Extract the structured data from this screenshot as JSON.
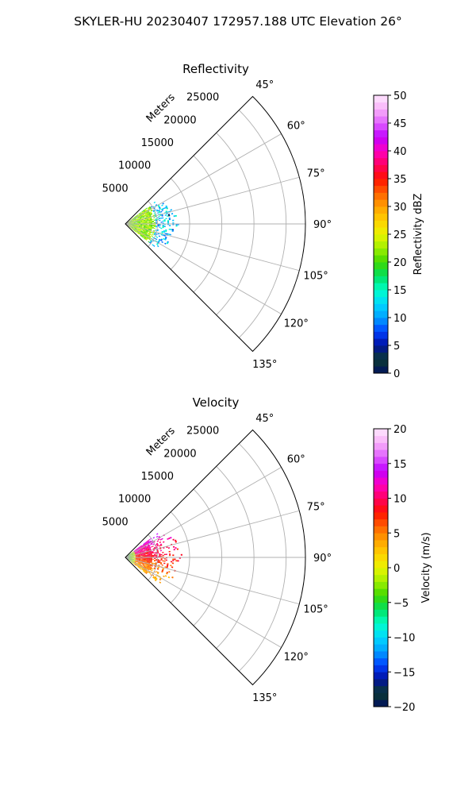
{
  "suptitle": "SKYLER-HU  20230407  172957.188 UTC Elevation 26°",
  "range_label": "Meters",
  "chart_data": [
    {
      "type": "polar-sector-heatmap",
      "title": "Reflectivity",
      "theta_range_deg": [
        45,
        135
      ],
      "theta_ticks": [
        {
          "value": 45,
          "label": "45°"
        },
        {
          "value": 60,
          "label": "60°"
        },
        {
          "value": 75,
          "label": "75°"
        },
        {
          "value": 90,
          "label": "90°"
        },
        {
          "value": 105,
          "label": "105°"
        },
        {
          "value": 120,
          "label": "120°"
        },
        {
          "value": 135,
          "label": "135°"
        }
      ],
      "r_range_m": [
        0,
        28000
      ],
      "r_ticks": [
        {
          "value": 5000,
          "label": "5000"
        },
        {
          "value": 10000,
          "label": "10000"
        },
        {
          "value": 15000,
          "label": "15000"
        },
        {
          "value": 20000,
          "label": "20000"
        },
        {
          "value": 25000,
          "label": "25000"
        }
      ],
      "grid": true,
      "colorbar": {
        "label": "Reflectivity dBZ",
        "range": [
          0,
          50
        ],
        "ticks": [
          {
            "value": 0,
            "label": "0"
          },
          {
            "value": 5,
            "label": "5"
          },
          {
            "value": 10,
            "label": "10"
          },
          {
            "value": 15,
            "label": "15"
          },
          {
            "value": 20,
            "label": "20"
          },
          {
            "value": 25,
            "label": "25"
          },
          {
            "value": 30,
            "label": "30"
          },
          {
            "value": 35,
            "label": "35"
          },
          {
            "value": 40,
            "label": "40"
          },
          {
            "value": 45,
            "label": "45"
          },
          {
            "value": 50,
            "label": "50"
          }
        ],
        "stops": [
          [
            0,
            "#001060"
          ],
          [
            0.05,
            "#0c3a30"
          ],
          [
            0.1,
            "#0010a0"
          ],
          [
            0.15,
            "#0040ff"
          ],
          [
            0.2,
            "#00a0ff"
          ],
          [
            0.25,
            "#00d8ff"
          ],
          [
            0.3,
            "#00ffc8"
          ],
          [
            0.35,
            "#00e060"
          ],
          [
            0.4,
            "#40d800"
          ],
          [
            0.45,
            "#a0f000"
          ],
          [
            0.5,
            "#eaf400"
          ],
          [
            0.55,
            "#ffd000"
          ],
          [
            0.6,
            "#ffa000"
          ],
          [
            0.65,
            "#ff6000"
          ],
          [
            0.7,
            "#ff1000"
          ],
          [
            0.75,
            "#ff0060"
          ],
          [
            0.8,
            "#ff00c0"
          ],
          [
            0.85,
            "#c000ff"
          ],
          [
            0.9,
            "#e060ff"
          ],
          [
            0.95,
            "#f8b0f8"
          ],
          [
            1,
            "#ffe8ff"
          ]
        ]
      },
      "echo": {
        "max_range_m": 9000,
        "ring_range_m": 4500,
        "near_value": 22,
        "far_value": 12,
        "fill_fraction": 0.55
      }
    },
    {
      "type": "polar-sector-heatmap",
      "title": "Velocity",
      "theta_range_deg": [
        45,
        135
      ],
      "theta_ticks": [
        {
          "value": 45,
          "label": "45°"
        },
        {
          "value": 60,
          "label": "60°"
        },
        {
          "value": 75,
          "label": "75°"
        },
        {
          "value": 90,
          "label": "90°"
        },
        {
          "value": 105,
          "label": "105°"
        },
        {
          "value": 120,
          "label": "120°"
        },
        {
          "value": 135,
          "label": "135°"
        }
      ],
      "r_range_m": [
        0,
        28000
      ],
      "r_ticks": [
        {
          "value": 5000,
          "label": "5000"
        },
        {
          "value": 10000,
          "label": "10000"
        },
        {
          "value": 15000,
          "label": "15000"
        },
        {
          "value": 20000,
          "label": "20000"
        },
        {
          "value": 25000,
          "label": "25000"
        }
      ],
      "grid": true,
      "colorbar": {
        "label": "Velocity (m/s)",
        "range": [
          -20,
          20
        ],
        "ticks": [
          {
            "value": -20,
            "label": "−20"
          },
          {
            "value": -15,
            "label": "−15"
          },
          {
            "value": -10,
            "label": "−10"
          },
          {
            "value": -5,
            "label": "−5"
          },
          {
            "value": 0,
            "label": "0"
          },
          {
            "value": 5,
            "label": "5"
          },
          {
            "value": 10,
            "label": "10"
          },
          {
            "value": 15,
            "label": "15"
          },
          {
            "value": 20,
            "label": "20"
          }
        ],
        "stops": [
          [
            0,
            "#001060"
          ],
          [
            0.05,
            "#0c3a30"
          ],
          [
            0.1,
            "#0010a0"
          ],
          [
            0.15,
            "#0040ff"
          ],
          [
            0.2,
            "#00a0ff"
          ],
          [
            0.25,
            "#00d8ff"
          ],
          [
            0.3,
            "#00ffc8"
          ],
          [
            0.35,
            "#00e060"
          ],
          [
            0.4,
            "#40d800"
          ],
          [
            0.45,
            "#a0f000"
          ],
          [
            0.5,
            "#eaf400"
          ],
          [
            0.55,
            "#ffd000"
          ],
          [
            0.6,
            "#ffa000"
          ],
          [
            0.65,
            "#ff6000"
          ],
          [
            0.7,
            "#ff1000"
          ],
          [
            0.75,
            "#ff0060"
          ],
          [
            0.8,
            "#ff00c0"
          ],
          [
            0.85,
            "#c000ff"
          ],
          [
            0.9,
            "#e060ff"
          ],
          [
            0.95,
            "#f8b0f8"
          ],
          [
            1,
            "#ffe8ff"
          ]
        ]
      },
      "echo": {
        "max_range_m": 9000,
        "ring_range_m": 4500,
        "north_value": 14,
        "south_value": 2,
        "near_value": -6,
        "fill_fraction": 0.6
      }
    }
  ]
}
